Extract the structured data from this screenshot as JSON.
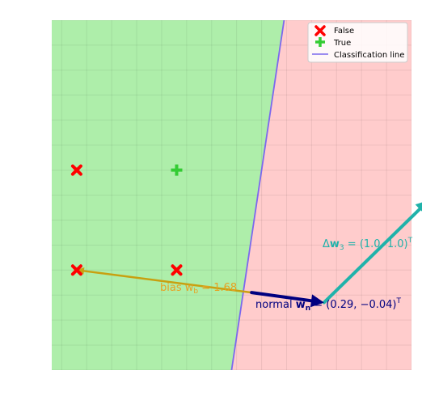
{
  "chart_data": {
    "type": "scatter",
    "title": "",
    "xlabel": "",
    "ylabel": "",
    "xlim": [
      -0.24,
      1.2
    ],
    "ylim": [
      -0.4,
      1.0
    ],
    "grid": true,
    "legend_position": "top-right",
    "colors": {
      "class_true_region": "#aeeeaa",
      "class_false_region": "#ffcccc",
      "false_marker": "#ff0000",
      "true_marker": "#33cc33",
      "classification_line": "#7b68ee",
      "normal_vector": "#000080",
      "bias_vector": "#c8a010",
      "delta_vector": "#20b2aa"
    },
    "series": [
      {
        "name": "False",
        "marker": "x",
        "points": [
          [
            -0.14,
            0.4
          ],
          [
            -0.14,
            0.0
          ],
          [
            0.26,
            0.0
          ]
        ]
      },
      {
        "name": "True",
        "marker": "plus",
        "points": [
          [
            0.26,
            0.4
          ]
        ]
      }
    ],
    "classification_line": {
      "name": "Classification line",
      "points": [
        [
          0.48,
          -0.4
        ],
        [
          0.69,
          1.0
        ]
      ]
    },
    "vectors": {
      "normal": {
        "from": [
          0.56,
          -0.09
        ],
        "to": [
          0.85,
          -0.13
        ],
        "label": "normal $\\mathbf{w_n} = (0.29, -0.04)^T$"
      },
      "bias": {
        "from": [
          0.56,
          -0.09
        ],
        "to": [
          -0.14,
          0.0
        ],
        "label": "bias $w_b = 1.68$"
      },
      "delta": {
        "from": [
          0.85,
          -0.13
        ],
        "to": [
          1.27,
          0.28
        ],
        "label": "$\\Delta\\mathbf{w}_3 = (1.0, 1.0)^T$"
      }
    },
    "legend": [
      "False",
      "True",
      "Classification line"
    ]
  },
  "texts": {
    "legend_false": "False",
    "legend_true": "True",
    "legend_line": "Classification line",
    "bias_label": "bias w",
    "bias_sub": "b",
    "bias_value": " = 1.68",
    "normal_prefix": "normal ",
    "normal_w": "w",
    "normal_sub": "n",
    "normal_value": " = (0.29, −0.04)",
    "normal_sup": "T",
    "delta_prefix": "Δ",
    "delta_w": "w",
    "delta_sub": "3",
    "delta_value": " = (1.0, 1.0)",
    "delta_sup": "T"
  }
}
